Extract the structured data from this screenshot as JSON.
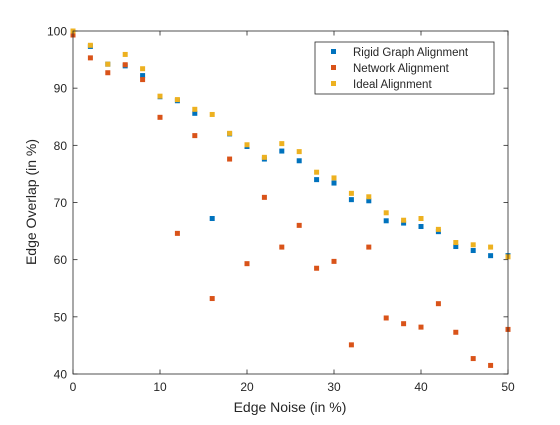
{
  "chart_data": {
    "type": "scatter",
    "title": "",
    "xlabel": "Edge Noise (in %)",
    "ylabel": "Edge Overlap (in %)",
    "xlim": [
      0,
      50
    ],
    "ylim": [
      40,
      100
    ],
    "xticks": [
      0,
      10,
      20,
      30,
      40,
      50
    ],
    "yticks": [
      40,
      50,
      60,
      70,
      80,
      90,
      100
    ],
    "grid": false,
    "legend_position": "top-right",
    "series": [
      {
        "name": "Rigid Graph Alignment",
        "color": "#0072BD",
        "x": [
          0,
          2,
          4,
          6,
          8,
          10,
          12,
          14,
          16,
          18,
          20,
          22,
          24,
          26,
          28,
          30,
          32,
          34,
          36,
          38,
          40,
          42,
          44,
          46,
          48,
          50
        ],
        "y": [
          99.9,
          97.3,
          94.2,
          93.9,
          92.2,
          88.5,
          87.8,
          85.6,
          67.2,
          82.0,
          79.8,
          77.6,
          79.0,
          77.3,
          74.0,
          73.4,
          70.5,
          70.3,
          66.8,
          66.4,
          65.8,
          64.9,
          62.3,
          61.6,
          60.7,
          60.7
        ]
      },
      {
        "name": "Network Alignment",
        "color": "#D95319",
        "x": [
          0,
          2,
          4,
          6,
          8,
          10,
          12,
          14,
          16,
          18,
          20,
          22,
          24,
          26,
          28,
          30,
          32,
          34,
          36,
          38,
          40,
          42,
          44,
          46,
          48,
          50
        ],
        "y": [
          99.3,
          95.3,
          92.7,
          94.1,
          91.5,
          84.9,
          64.6,
          81.7,
          53.2,
          77.6,
          59.3,
          70.9,
          62.2,
          66.0,
          58.5,
          59.7,
          45.1,
          62.2,
          49.8,
          48.8,
          48.2,
          52.3,
          47.3,
          42.7,
          41.5,
          47.8
        ]
      },
      {
        "name": "Ideal Alignment",
        "color": "#EDB120",
        "x": [
          0,
          2,
          4,
          6,
          8,
          10,
          12,
          14,
          16,
          18,
          20,
          22,
          24,
          26,
          28,
          30,
          32,
          34,
          36,
          38,
          40,
          42,
          44,
          46,
          48,
          50
        ],
        "y": [
          100.0,
          97.5,
          94.2,
          95.9,
          93.4,
          88.6,
          88.0,
          86.3,
          85.4,
          82.1,
          80.1,
          77.9,
          80.3,
          78.9,
          75.3,
          74.3,
          71.6,
          71.0,
          68.2,
          66.9,
          67.2,
          65.3,
          63.0,
          62.6,
          62.2,
          60.5
        ]
      }
    ]
  }
}
